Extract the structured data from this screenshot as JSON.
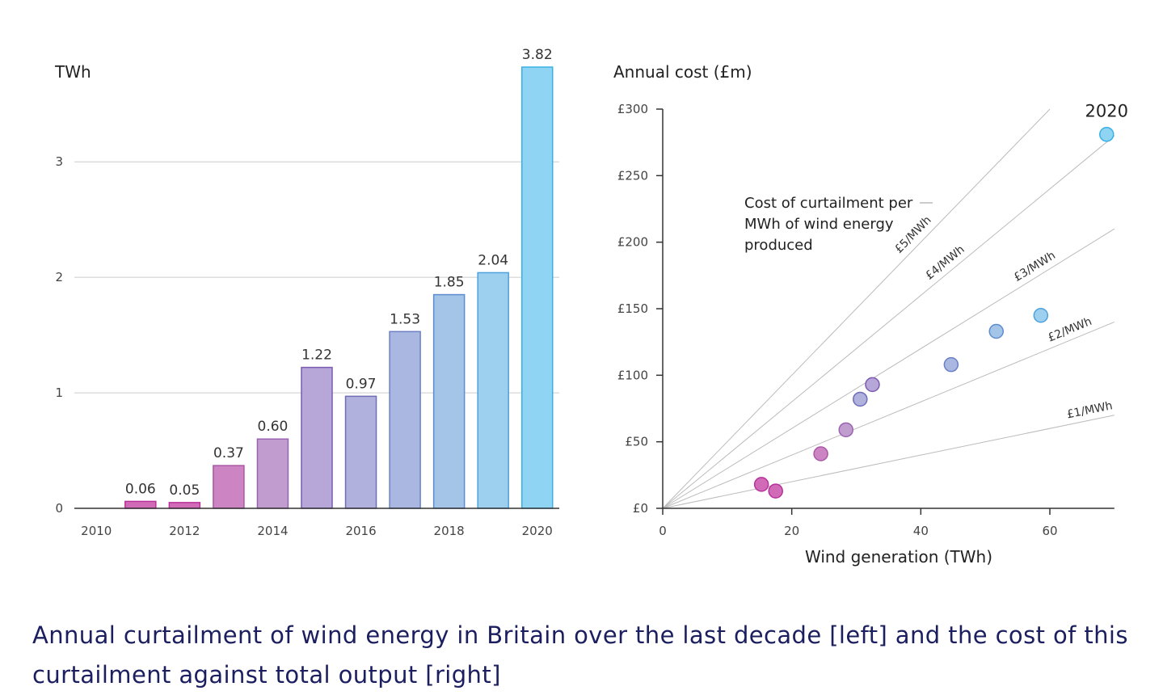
{
  "caption": "Annual curtailment of wind energy in Britain over the last decade [left] and the cost of this curtailment against total output [right]",
  "colors": {
    "magenta": "#d16bb8",
    "purple": "#b494c9",
    "lavender": "#a9a8d6",
    "blue": "#a4c4e8",
    "sky": "#8fd4f2",
    "axis": "#333333",
    "gridline": "#cccccc",
    "caption_text": "#1c1f5f"
  },
  "chart_data": [
    {
      "type": "bar",
      "ylabel": "TWh",
      "ylim": [
        0,
        3.82
      ],
      "yticks": [
        "0",
        "1",
        "2",
        "3"
      ],
      "grid": "horizontal",
      "xticks": [
        "2010",
        "2012",
        "2014",
        "2016",
        "2018",
        "2020"
      ],
      "categories": [
        "2010",
        "2011",
        "2012",
        "2013",
        "2014",
        "2015",
        "2016",
        "2017",
        "2018",
        "2019",
        "2020"
      ],
      "values": [
        0,
        0.06,
        0.05,
        0.37,
        0.6,
        1.22,
        0.97,
        1.53,
        1.85,
        2.04,
        3.82
      ],
      "labels": [
        "",
        "0.06",
        "0.05",
        "0.37",
        "0.60",
        "1.22",
        "0.97",
        "1.53",
        "1.85",
        "2.04",
        "3.82"
      ],
      "bar_colors": [
        "#d16bb8",
        "#d16bb8",
        "#d16bb8",
        "#cc85c2",
        "#c09ccf",
        "#b7a7d8",
        "#b1b1dd",
        "#aab7e1",
        "#a4c4e8",
        "#9dcfef",
        "#8fd4f2"
      ],
      "bar_strokes": [
        "#b8309a",
        "#b8309a",
        "#b8309a",
        "#a957a6",
        "#9a63b0",
        "#7a5bb0",
        "#6f6db8",
        "#6b80c4",
        "#5d8ccf",
        "#4da1dc",
        "#3ab0e4"
      ]
    },
    {
      "type": "scatter",
      "ylabel": "Annual cost (£m)",
      "xlabel": "Wind generation (TWh)",
      "xlim": [
        0,
        70
      ],
      "ylim": [
        0,
        300
      ],
      "xticks": [
        "0",
        "20",
        "40",
        "60"
      ],
      "yticks": [
        "£0",
        "£50",
        "£100",
        "£150",
        "£200",
        "£250",
        "£300"
      ],
      "points": [
        {
          "x": 15.3,
          "y": 18,
          "color": "#d16bb8",
          "stroke": "#b8309a"
        },
        {
          "x": 17.5,
          "y": 13,
          "color": "#d16bb8",
          "stroke": "#b8309a"
        },
        {
          "x": 24.5,
          "y": 41,
          "color": "#cc85c2",
          "stroke": "#a957a6"
        },
        {
          "x": 28.4,
          "y": 59,
          "color": "#c09ccf",
          "stroke": "#9a63b0"
        },
        {
          "x": 30.6,
          "y": 82,
          "color": "#b1b1dd",
          "stroke": "#6f6db8"
        },
        {
          "x": 32.5,
          "y": 93,
          "color": "#b7a7d8",
          "stroke": "#7a5bb0"
        },
        {
          "x": 44.7,
          "y": 108,
          "color": "#aab7e1",
          "stroke": "#6b80c4"
        },
        {
          "x": 51.7,
          "y": 133,
          "color": "#a4c4e8",
          "stroke": "#5d8ccf"
        },
        {
          "x": 58.6,
          "y": 145,
          "color": "#9dcfef",
          "stroke": "#4da1dc"
        },
        {
          "x": 68.8,
          "y": 281,
          "color": "#8fd4f2",
          "stroke": "#3ab0e4"
        }
      ],
      "point_annotation": {
        "point_index": 9,
        "text": "2020"
      },
      "reference_lines": [
        {
          "rate": 5,
          "label": "£5/MWh"
        },
        {
          "rate": 4,
          "label": "£4/MWh"
        },
        {
          "rate": 3,
          "label": "£3/MWh"
        },
        {
          "rate": 2,
          "label": "£2/MWh"
        },
        {
          "rate": 1,
          "label": "£1/MWh"
        }
      ],
      "annotation": [
        "Cost of curtailment per",
        "MWh of wind energy",
        "produced"
      ]
    }
  ]
}
